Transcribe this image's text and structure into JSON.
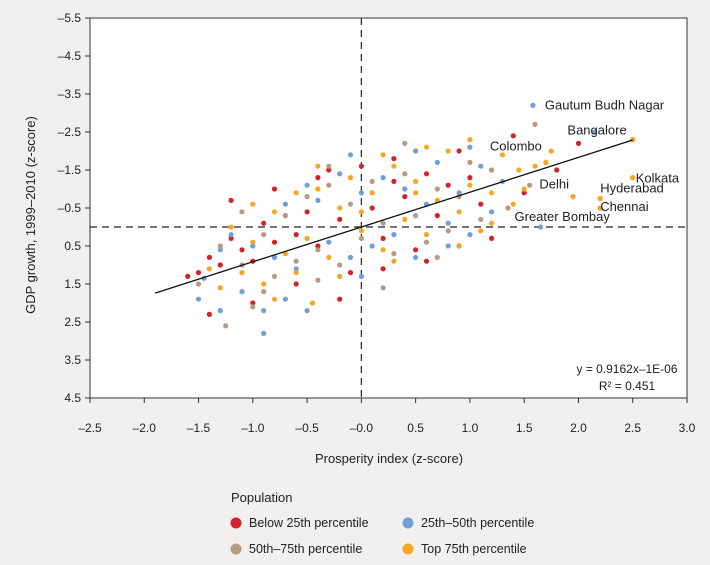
{
  "chart_data": {
    "type": "scatter",
    "title": "",
    "xlabel": "Prosperity index (z-score)",
    "ylabel": "GDP growth, 1999–2010 (z-score)",
    "xlim": [
      -2.5,
      3.0
    ],
    "ylim": [
      -4.5,
      5.5
    ],
    "y_axis_inverted_labels": true,
    "x_ticks": [
      "–2.5",
      "–2.0",
      "–1.5",
      "–1.0",
      "–0.5",
      "–0.0",
      "0.5",
      "1.0",
      "1.5",
      "2.0",
      "2.5",
      "3.0"
    ],
    "y_ticks": [
      "–5.5",
      "–4.5",
      "–3.5",
      "–2.5",
      "–1.5",
      "–0.5",
      "0.5",
      "1.5",
      "2.5",
      "3.5",
      "4.5"
    ],
    "grid": false,
    "reference_lines": {
      "x": 0,
      "y": 0
    },
    "trendline": {
      "equation": "y = 0.9162x–1E-06",
      "r2_label": "R² = 0.451",
      "slope": 0.9162,
      "intercept": -1e-06,
      "x_range": [
        -1.9,
        2.5
      ]
    },
    "legend": {
      "title": "Population",
      "position": "bottom-left",
      "items": [
        {
          "label": "Below 25th percentile",
          "color": "#d2232a"
        },
        {
          "label": "25th–50th percentile",
          "color": "#6e9fd6"
        },
        {
          "label": "50th–75th percentile",
          "color": "#b59a84"
        },
        {
          "label": "Top 75th percentile",
          "color": "#f5a623"
        }
      ]
    },
    "labeled_points": [
      {
        "name": "Gautum Budh Nagar",
        "x": 1.58,
        "y": 3.2,
        "series": 1
      },
      {
        "name": "Bangalore",
        "x": 2.5,
        "y": 2.3,
        "series": 3
      },
      {
        "name": "Colombo",
        "x": 1.7,
        "y": 1.7,
        "series": 3
      },
      {
        "name": "Kolkata",
        "x": 2.5,
        "y": 1.3,
        "series": 3
      },
      {
        "name": "Delhi",
        "x": 1.95,
        "y": 0.8,
        "series": 3
      },
      {
        "name": "Hyderabad",
        "x": 2.2,
        "y": 0.75,
        "series": 3
      },
      {
        "name": "Chennai",
        "x": 2.2,
        "y": 0.5,
        "series": 3
      },
      {
        "name": "Greater Bombay",
        "x": 1.65,
        "y": 0.0,
        "series": 1
      }
    ],
    "series": [
      {
        "name": "Below 25th percentile",
        "color": "#d2232a",
        "points": [
          [
            -1.6,
            -1.3
          ],
          [
            -1.5,
            -1.2
          ],
          [
            -1.4,
            -0.8
          ],
          [
            -1.3,
            -1.0
          ],
          [
            -1.2,
            -0.3
          ],
          [
            -1.1,
            -0.6
          ],
          [
            -1.0,
            -0.9
          ],
          [
            -0.9,
            0.1
          ],
          [
            -0.8,
            -0.4
          ],
          [
            -0.7,
            0.3
          ],
          [
            -0.6,
            -0.2
          ],
          [
            -0.5,
            0.4
          ],
          [
            -0.4,
            -0.5
          ],
          [
            -0.3,
            1.5
          ],
          [
            -0.2,
            0.2
          ],
          [
            -0.1,
            -1.2
          ],
          [
            0.0,
            1.6
          ],
          [
            0.1,
            0.5
          ],
          [
            0.2,
            -0.3
          ],
          [
            0.3,
            1.2
          ],
          [
            0.4,
            0.8
          ],
          [
            0.5,
            -0.6
          ],
          [
            0.6,
            1.4
          ],
          [
            0.7,
            0.3
          ],
          [
            0.8,
            1.1
          ],
          [
            0.9,
            -0.5
          ],
          [
            1.0,
            1.3
          ],
          [
            1.1,
            0.6
          ],
          [
            1.2,
            -0.3
          ],
          [
            1.4,
            2.4
          ],
          [
            1.5,
            0.9
          ],
          [
            1.8,
            1.5
          ],
          [
            2.0,
            2.2
          ],
          [
            -1.4,
            -2.3
          ],
          [
            -1.0,
            -2.0
          ],
          [
            -0.6,
            -1.5
          ],
          [
            -0.2,
            -1.9
          ],
          [
            0.2,
            -1.1
          ],
          [
            0.6,
            -0.9
          ],
          [
            -1.2,
            0.7
          ],
          [
            -0.8,
            1.0
          ],
          [
            -0.4,
            1.3
          ],
          [
            0.3,
            1.8
          ],
          [
            0.9,
            2.0
          ]
        ]
      },
      {
        "name": "25th–50th percentile",
        "color": "#6e9fd6",
        "points": [
          [
            -1.5,
            -1.9
          ],
          [
            -1.45,
            -1.35
          ],
          [
            -1.3,
            -2.2
          ],
          [
            -1.2,
            -0.2
          ],
          [
            -1.1,
            -1.7
          ],
          [
            -1.0,
            -0.5
          ],
          [
            -0.9,
            -2.8
          ],
          [
            -0.8,
            -0.8
          ],
          [
            -0.7,
            0.6
          ],
          [
            -0.6,
            -1.1
          ],
          [
            -0.5,
            -2.2
          ],
          [
            -0.4,
            0.7
          ],
          [
            -0.3,
            -0.4
          ],
          [
            -0.2,
            1.4
          ],
          [
            -0.1,
            -0.8
          ],
          [
            0.0,
            0.9
          ],
          [
            0.1,
            -0.5
          ],
          [
            0.2,
            1.3
          ],
          [
            0.3,
            -0.2
          ],
          [
            0.4,
            1.0
          ],
          [
            0.5,
            -0.8
          ],
          [
            0.6,
            0.6
          ],
          [
            0.7,
            1.7
          ],
          [
            0.8,
            0.1
          ],
          [
            0.9,
            0.9
          ],
          [
            1.0,
            -0.2
          ],
          [
            1.1,
            1.6
          ],
          [
            1.2,
            0.4
          ],
          [
            1.3,
            1.2
          ],
          [
            2.15,
            2.5
          ],
          [
            -0.9,
            -2.2
          ],
          [
            -0.5,
            1.1
          ],
          [
            0.0,
            -1.3
          ],
          [
            0.5,
            2.0
          ],
          [
            1.0,
            2.1
          ],
          [
            -1.3,
            -0.6
          ],
          [
            -0.7,
            -1.9
          ],
          [
            -0.1,
            1.9
          ],
          [
            0.8,
            -0.5
          ]
        ]
      },
      {
        "name": "50th–75th percentile",
        "color": "#b59a84",
        "points": [
          [
            -1.5,
            -1.5
          ],
          [
            -1.3,
            -0.5
          ],
          [
            -1.25,
            -2.6
          ],
          [
            -1.1,
            -1.0
          ],
          [
            -1.0,
            -2.1
          ],
          [
            -0.9,
            -0.2
          ],
          [
            -0.8,
            -1.3
          ],
          [
            -0.7,
            0.3
          ],
          [
            -0.6,
            -0.9
          ],
          [
            -0.5,
            0.8
          ],
          [
            -0.4,
            -0.6
          ],
          [
            -0.3,
            1.1
          ],
          [
            -0.2,
            -1.0
          ],
          [
            -0.1,
            0.6
          ],
          [
            0.0,
            -0.3
          ],
          [
            0.1,
            1.2
          ],
          [
            0.2,
            0.1
          ],
          [
            0.3,
            -0.7
          ],
          [
            0.4,
            1.4
          ],
          [
            0.5,
            0.3
          ],
          [
            0.6,
            -0.4
          ],
          [
            0.7,
            1.0
          ],
          [
            0.8,
            -0.1
          ],
          [
            0.9,
            0.8
          ],
          [
            1.0,
            1.7
          ],
          [
            1.1,
            0.2
          ],
          [
            1.2,
            1.5
          ],
          [
            1.35,
            0.5
          ],
          [
            1.6,
            2.7
          ],
          [
            1.55,
            1.1
          ],
          [
            -0.9,
            -1.7
          ],
          [
            -0.4,
            -1.4
          ],
          [
            0.2,
            -1.6
          ],
          [
            0.7,
            -0.8
          ],
          [
            -1.1,
            0.4
          ],
          [
            -0.3,
            1.6
          ],
          [
            0.4,
            2.2
          ]
        ]
      },
      {
        "name": "Top 75th percentile",
        "color": "#f5a623",
        "points": [
          [
            -1.4,
            -1.1
          ],
          [
            -1.3,
            -1.6
          ],
          [
            -1.2,
            0.0
          ],
          [
            -1.1,
            -1.2
          ],
          [
            -1.0,
            -0.4
          ],
          [
            -0.9,
            -1.5
          ],
          [
            -0.8,
            0.4
          ],
          [
            -0.7,
            -0.7
          ],
          [
            -0.6,
            0.9
          ],
          [
            -0.5,
            -0.3
          ],
          [
            -0.45,
            -2.0
          ],
          [
            -0.4,
            1.0
          ],
          [
            -0.3,
            -0.8
          ],
          [
            -0.2,
            0.5
          ],
          [
            -0.1,
            1.3
          ],
          [
            0.0,
            -0.1
          ],
          [
            0.1,
            0.9
          ],
          [
            0.2,
            -0.6
          ],
          [
            0.3,
            1.6
          ],
          [
            0.4,
            0.2
          ],
          [
            0.5,
            1.2
          ],
          [
            0.6,
            -0.2
          ],
          [
            0.7,
            0.7
          ],
          [
            0.8,
            2.0
          ],
          [
            0.9,
            0.4
          ],
          [
            1.0,
            1.1
          ],
          [
            1.1,
            -0.1
          ],
          [
            1.2,
            0.9
          ],
          [
            1.3,
            1.9
          ],
          [
            1.4,
            0.6
          ],
          [
            1.45,
            1.5
          ],
          [
            1.6,
            1.6
          ],
          [
            1.7,
            1.7
          ],
          [
            1.75,
            2.0
          ],
          [
            1.95,
            0.8
          ],
          [
            2.2,
            0.75
          ],
          [
            2.2,
            0.5
          ],
          [
            2.5,
            2.3
          ],
          [
            2.5,
            1.3
          ],
          [
            -0.8,
            -1.9
          ],
          [
            -0.2,
            -1.3
          ],
          [
            0.3,
            -0.9
          ],
          [
            0.9,
            -0.5
          ],
          [
            1.2,
            0.1
          ],
          [
            -1.0,
            0.6
          ],
          [
            -0.4,
            1.6
          ],
          [
            0.2,
            1.9
          ],
          [
            0.6,
            2.1
          ],
          [
            1.0,
            2.3
          ],
          [
            -0.6,
            -1.2
          ],
          [
            0.0,
            0.4
          ],
          [
            0.5,
            0.9
          ],
          [
            1.5,
            1.0
          ]
        ]
      }
    ]
  }
}
